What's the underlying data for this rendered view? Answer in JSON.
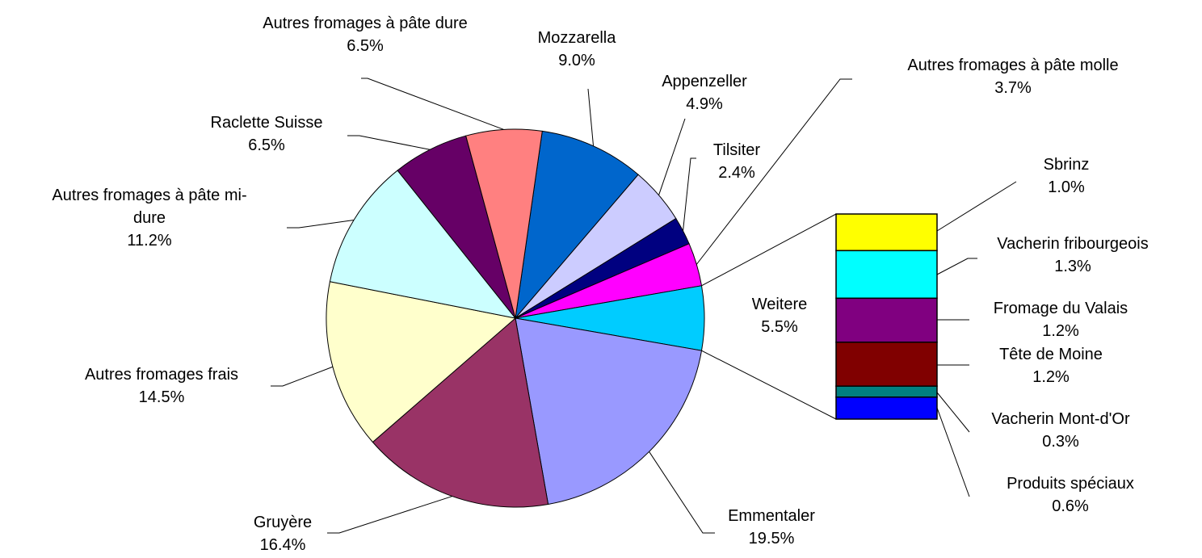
{
  "chart_data": {
    "type": "pie-of-bar",
    "categories": [
      "Mozzarella",
      "Appenzeller",
      "Tilsiter",
      "Autres fromages à pâte molle",
      "Weitere",
      "Emmentaler",
      "Gruyère",
      "Autres fromages frais",
      "Autres fromages à pâte mi-dure",
      "Raclette Suisse",
      "Autres fromages à pâte dure"
    ],
    "values": [
      9.0,
      4.9,
      2.4,
      3.7,
      5.5,
      19.5,
      16.4,
      14.5,
      11.2,
      6.5,
      6.5
    ],
    "value_labels": [
      "9.0%",
      "4.9%",
      "2.4%",
      "3.7%",
      "5.5%",
      "19.5%",
      "16.4%",
      "14.5%",
      "11.2%",
      "6.5%",
      "6.5%"
    ],
    "colors": [
      "#0066CC",
      "#CCCCFF",
      "#000080",
      "#FF00FF",
      "#00CCFF",
      "#9999FF",
      "#993366",
      "#FFFFCC",
      "#CCFFFF",
      "#660066",
      "#FF8080"
    ],
    "bar": {
      "categories": [
        "Sbrinz",
        "Vacherin fribourgeois",
        "Fromage du Valais",
        "Tête de Moine",
        "Vacherin Mont-d'Or",
        "Produits spéciaux"
      ],
      "values": [
        1.0,
        1.3,
        1.2,
        1.2,
        0.3,
        0.6
      ],
      "value_labels": [
        "1.0%",
        "1.3%",
        "1.2%",
        "1.2%",
        "0.3%",
        "0.6%"
      ],
      "colors": [
        "#FFFF00",
        "#00FFFF",
        "#800080",
        "#800000",
        "#008080",
        "#0000FF"
      ]
    }
  }
}
